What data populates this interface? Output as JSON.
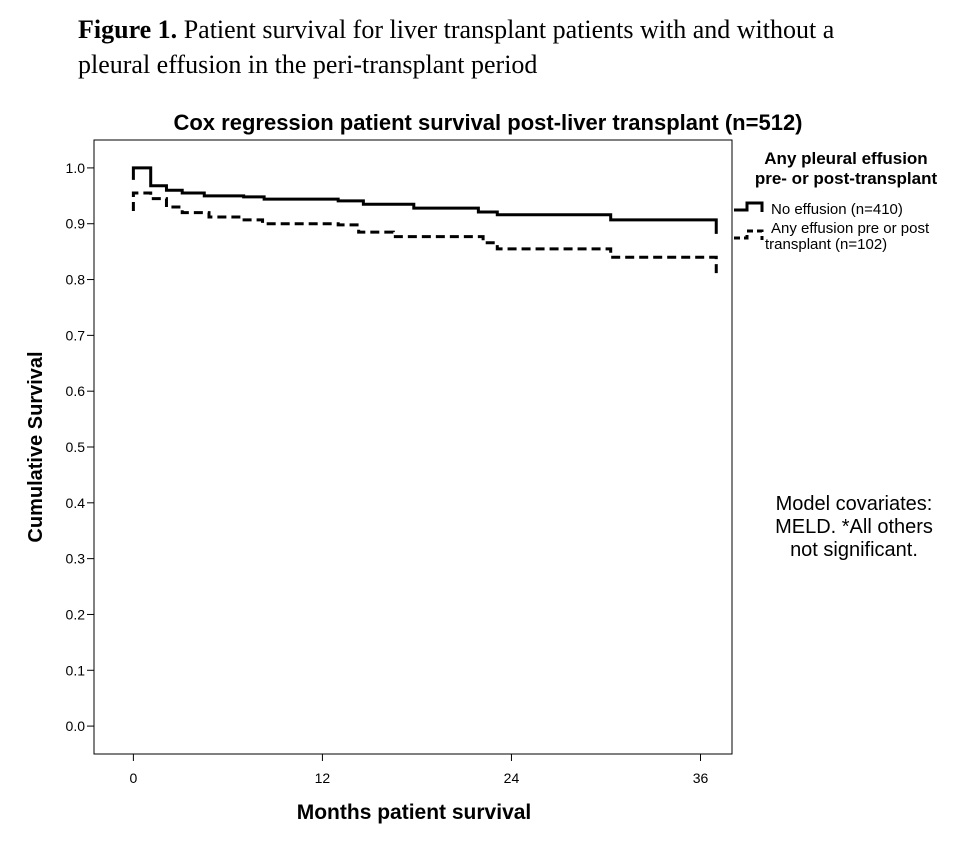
{
  "figure": {
    "label": "Figure 1.",
    "caption": "Patient survival for liver transplant patients with and without a pleural effusion in the peri-transplant period"
  },
  "chart_data": {
    "type": "line",
    "title": "Cox regression patient survival post-liver transplant (n=512)",
    "xlabel": "Months patient survival",
    "ylabel": "Cumulative Survival",
    "xlim": [
      -2.5,
      38
    ],
    "ylim": [
      -0.05,
      1.05
    ],
    "x_ticks": [
      0,
      12,
      24,
      36
    ],
    "x_tick_labels": [
      "0",
      "12",
      "24",
      "36"
    ],
    "y_ticks": [
      0.0,
      0.1,
      0.2,
      0.3,
      0.4,
      0.5,
      0.6,
      0.7,
      0.8,
      0.9,
      1.0
    ],
    "y_tick_labels": [
      "0.0",
      "0.1",
      "0.2",
      "0.3",
      "0.4",
      "0.5",
      "0.6",
      "0.7",
      "0.8",
      "0.9",
      "1.0"
    ],
    "grid": false,
    "legend": {
      "title_line1": "Any pleural effusion",
      "title_line2": "pre- or post-transplant",
      "placement": "right"
    },
    "series": [
      {
        "name": "No effusion (n=410)",
        "style": "solid",
        "color": "#000000",
        "x": [
          0,
          1.1,
          2.1,
          3.1,
          4.5,
          7,
          8.3,
          13,
          14.6,
          17.8,
          21.9,
          23.1,
          30.3,
          37
        ],
        "y": [
          1.0,
          0.968,
          0.96,
          0.955,
          0.95,
          0.948,
          0.944,
          0.941,
          0.935,
          0.928,
          0.921,
          0.916,
          0.907,
          0.889
        ]
      },
      {
        "name": "Any effusion pre or post transplant (n=102)",
        "style": "dashed",
        "color": "#000000",
        "x": [
          0,
          1.1,
          2.1,
          3.1,
          4.8,
          6.8,
          8.2,
          13,
          14.3,
          16.5,
          22.2,
          23.1,
          30.3,
          37
        ],
        "y": [
          0.955,
          0.945,
          0.93,
          0.92,
          0.912,
          0.907,
          0.9,
          0.898,
          0.885,
          0.877,
          0.866,
          0.855,
          0.84,
          0.81
        ]
      }
    ],
    "legend_labels": {
      "no_effusion": "No effusion (n=410)",
      "effusion_line1": "Any effusion pre or post",
      "effusion_line2": "transplant (n=102)"
    },
    "annotation": {
      "line1": "Model covariates:",
      "line2": "MELD. *All others",
      "line3": "not significant."
    }
  }
}
